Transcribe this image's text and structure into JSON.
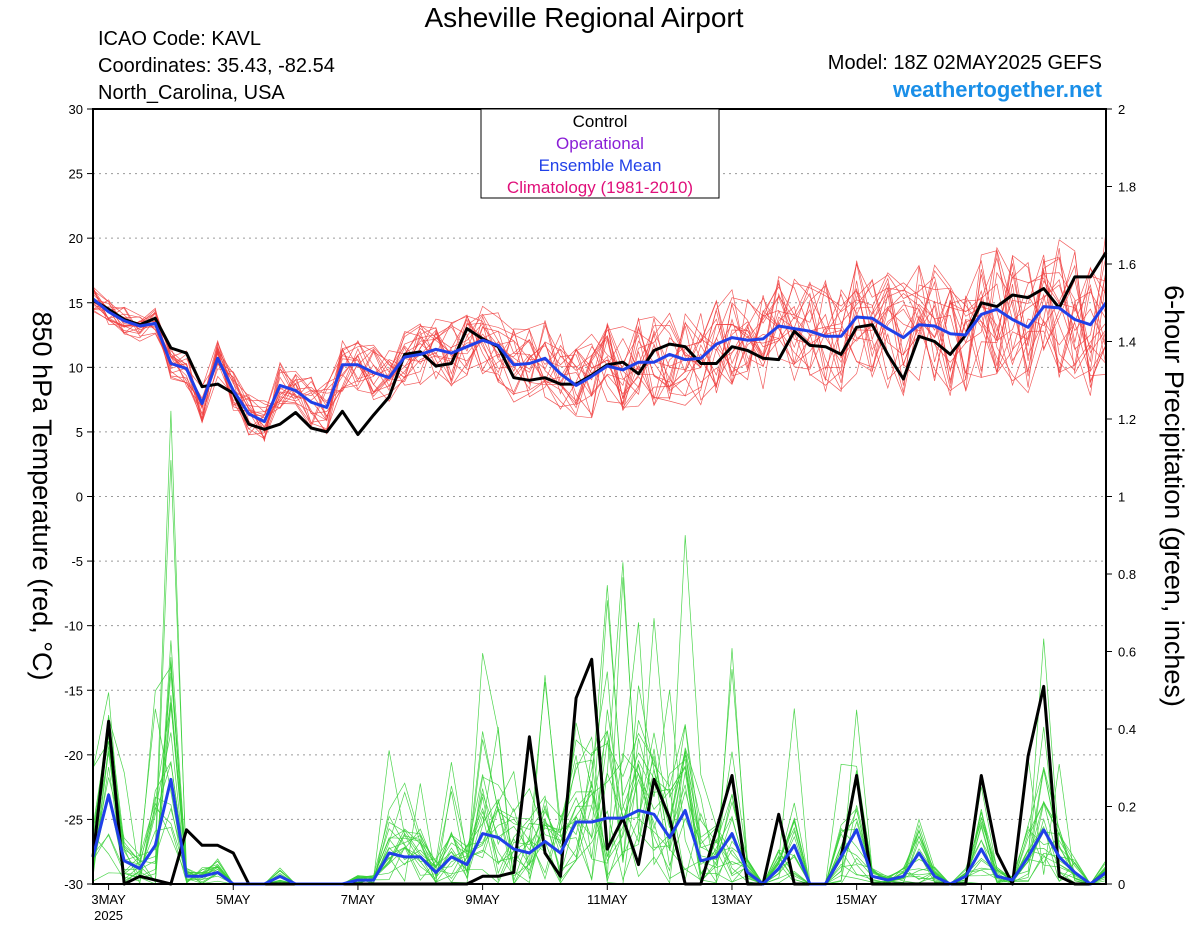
{
  "header": {
    "title": "Asheville Regional Airport",
    "icao": "ICAO Code: KAVL",
    "coords": "Coordinates: 35.43, -82.54",
    "region": "North_Carolina, USA",
    "model": "Model: 18Z 02MAY2025 GEFS",
    "site": "weathertogether.net"
  },
  "colors": {
    "control": "#000000",
    "operational": "#8a1ed6",
    "mean": "#2040e8",
    "climatology": "#e0107a",
    "members_temp": "#f04040",
    "members_precip": "#38d038",
    "site": "#1a8fe8"
  },
  "chart_data": {
    "type": "line",
    "title": "Asheville Regional Airport",
    "ylabel_left": "850 hPa Temperature (red, °C)",
    "ylabel_right": "6-hour Precipitation (green, inches)",
    "ylim_left": [
      -30,
      30
    ],
    "ylim_right": [
      0,
      2
    ],
    "yticks_left": [
      "30",
      "25",
      "20",
      "15",
      "10",
      "5",
      "0",
      "-5",
      "-10",
      "-15",
      "-20",
      "-25",
      "-30"
    ],
    "yticks_right": [
      "2",
      "1.8",
      "1.6",
      "1.4",
      "1.2",
      "1",
      "0.8",
      "0.6",
      "0.4",
      "0.2",
      "0"
    ],
    "x_step_hours": 6,
    "x_start": "2025-05-02 18Z",
    "xticks": [
      {
        "label": "3MAY",
        "sub": "2025",
        "index": 1
      },
      {
        "label": "5MAY",
        "sub": "",
        "index": 9
      },
      {
        "label": "7MAY",
        "sub": "",
        "index": 17
      },
      {
        "label": "9MAY",
        "sub": "",
        "index": 25
      },
      {
        "label": "11MAY",
        "sub": "",
        "index": 33
      },
      {
        "label": "13MAY",
        "sub": "",
        "index": 41
      },
      {
        "label": "15MAY",
        "sub": "",
        "index": 49
      },
      {
        "label": "17MAY",
        "sub": "",
        "index": 57
      }
    ],
    "grid": true,
    "legend": {
      "position": "top-center",
      "entries": [
        {
          "label": "Control",
          "color": "#000000"
        },
        {
          "label": "Operational",
          "color": "#8a1ed6"
        },
        {
          "label": "Ensemble Mean",
          "color": "#2040e8"
        },
        {
          "label": "Climatology (1981-2010)",
          "color": "#e0107a"
        }
      ]
    },
    "series": [
      {
        "name": "Control",
        "axis": "left",
        "values": [
          15.2,
          14.5,
          13.7,
          13.3,
          13.8,
          11.5,
          11.1,
          8.5,
          8.7,
          8.0,
          5.6,
          5.2,
          5.6,
          6.5,
          5.3,
          5.0,
          6.6,
          4.8,
          6.3,
          7.7,
          11.0,
          11.2,
          10.1,
          10.3,
          13.0,
          12.2,
          11.6,
          9.2,
          9.0,
          9.2,
          8.7,
          8.7,
          9.4,
          10.2,
          10.4,
          9.5,
          11.3,
          11.8,
          11.6,
          10.3,
          10.3,
          11.6,
          11.3,
          10.7,
          10.6,
          12.8,
          11.7,
          11.6,
          11.0,
          13.1,
          13.3,
          11.0,
          9.1,
          12.4,
          12.0,
          11.0,
          12.5,
          15.0,
          14.7,
          15.6,
          15.4,
          16.1,
          14.6,
          17.0,
          17.0,
          18.9
        ]
      },
      {
        "name": "Ensemble Mean",
        "axis": "left",
        "values": [
          15.3,
          14.3,
          13.6,
          13.2,
          13.4,
          10.3,
          9.9,
          7.2,
          10.7,
          8.2,
          6.4,
          5.8,
          8.6,
          8.2,
          7.3,
          6.9,
          10.2,
          10.2,
          9.6,
          9.2,
          10.8,
          11.0,
          11.4,
          11.1,
          11.6,
          12.1,
          11.7,
          10.2,
          10.3,
          10.7,
          9.5,
          8.6,
          9.3,
          10.1,
          9.8,
          10.4,
          10.4,
          11.0,
          10.6,
          10.7,
          11.8,
          12.3,
          12.1,
          12.2,
          13.2,
          13.0,
          12.8,
          12.4,
          12.4,
          13.9,
          13.8,
          13.0,
          12.3,
          13.3,
          13.2,
          12.6,
          12.5,
          14.1,
          14.5,
          13.7,
          13.1,
          14.7,
          14.6,
          13.7,
          13.3,
          15.0
        ]
      },
      {
        "name": "Control",
        "axis": "right",
        "values": [
          0.07,
          0.42,
          0.0,
          0.02,
          0.01,
          0.0,
          0.14,
          0.1,
          0.1,
          0.08,
          0.0,
          0.0,
          0.0,
          0.0,
          0.0,
          0.0,
          0.0,
          0.0,
          0.0,
          0.0,
          0.0,
          0.0,
          0.0,
          0.0,
          0.0,
          0.02,
          0.02,
          0.03,
          0.38,
          0.08,
          0.02,
          0.48,
          0.58,
          0.09,
          0.17,
          0.05,
          0.27,
          0.17,
          0.0,
          0.0,
          0.14,
          0.28,
          0.0,
          0.0,
          0.18,
          0.0,
          0.0,
          0.0,
          0.07,
          0.28,
          0.0,
          0.0,
          0.0,
          0.0,
          0.0,
          0.0,
          0.0,
          0.28,
          0.08,
          0.0,
          0.33,
          0.51,
          0.02,
          0.0,
          0.0,
          0.03
        ]
      },
      {
        "name": "Ensemble Mean",
        "axis": "right",
        "values": [
          0.07,
          0.23,
          0.06,
          0.04,
          0.1,
          0.27,
          0.02,
          0.02,
          0.03,
          0.0,
          0.0,
          0.0,
          0.02,
          0.0,
          0.0,
          0.0,
          0.0,
          0.01,
          0.01,
          0.08,
          0.07,
          0.07,
          0.03,
          0.07,
          0.05,
          0.13,
          0.12,
          0.09,
          0.08,
          0.11,
          0.08,
          0.16,
          0.16,
          0.17,
          0.17,
          0.19,
          0.18,
          0.12,
          0.19,
          0.06,
          0.07,
          0.13,
          0.03,
          0.0,
          0.04,
          0.1,
          0.0,
          0.0,
          0.07,
          0.14,
          0.02,
          0.01,
          0.02,
          0.08,
          0.02,
          0.0,
          0.02,
          0.09,
          0.02,
          0.01,
          0.07,
          0.14,
          0.07,
          0.03,
          0.0,
          0.03
        ]
      }
    ]
  }
}
